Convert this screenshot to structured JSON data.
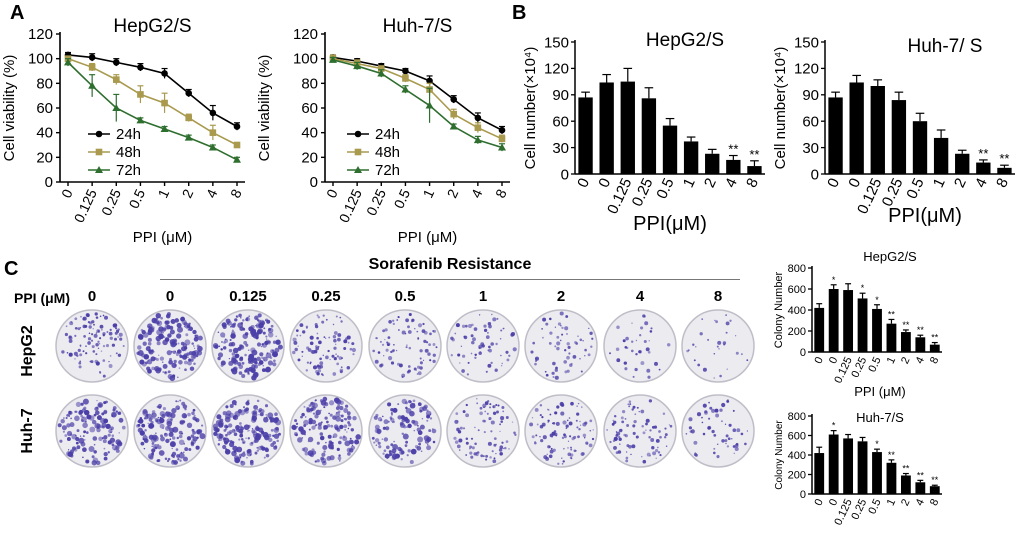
{
  "panels": {
    "a": "A",
    "b": "B",
    "c": "C"
  },
  "chart_data": [
    {
      "type": "line",
      "title": "HepG2/S",
      "ylabel": "Cell viability (%)",
      "xlabel": "PPI (μM)",
      "categories": [
        "0",
        "0.125",
        "0.25",
        "0.5",
        "1",
        "2",
        "4",
        "8"
      ],
      "ylim": [
        0,
        120
      ],
      "yticks": [
        0,
        20,
        40,
        60,
        80,
        100,
        120
      ],
      "legend_position": "left",
      "series": [
        {
          "name": "24h",
          "color": "#000000",
          "marker": "circle",
          "values": [
            103,
            101,
            97,
            93,
            88,
            72,
            56,
            45
          ],
          "errors": [
            2,
            3,
            3,
            3,
            4,
            3,
            6,
            3
          ]
        },
        {
          "name": "48h",
          "color": "#a99a4e",
          "marker": "square",
          "values": [
            100,
            93,
            83,
            71,
            64,
            52,
            40,
            30
          ],
          "errors": [
            2,
            3,
            4,
            7,
            8,
            3,
            6,
            2
          ]
        },
        {
          "name": "72h",
          "color": "#2e6e2e",
          "marker": "triangle",
          "values": [
            97,
            78,
            60,
            50,
            43,
            36,
            28,
            18
          ],
          "errors": [
            3,
            9,
            11,
            2,
            2,
            2,
            2,
            2
          ]
        }
      ]
    },
    {
      "type": "line",
      "title": "Huh-7/S",
      "ylabel": "Cell viability (%)",
      "xlabel": "PPI (μM)",
      "categories": [
        "0",
        "0.125",
        "0.25",
        "0.5",
        "1",
        "2",
        "4",
        "8"
      ],
      "ylim": [
        0,
        120
      ],
      "yticks": [
        0,
        20,
        40,
        60,
        80,
        100,
        120
      ],
      "legend_position": "left",
      "series": [
        {
          "name": "24h",
          "color": "#000000",
          "marker": "circle",
          "values": [
            101,
            98,
            94,
            90,
            82,
            67,
            52,
            42
          ],
          "errors": [
            2,
            2,
            2,
            2,
            4,
            3,
            4,
            3
          ]
        },
        {
          "name": "48h",
          "color": "#a99a4e",
          "marker": "square",
          "values": [
            100,
            96,
            92,
            84,
            75,
            55,
            44,
            35
          ],
          "errors": [
            3,
            3,
            2,
            3,
            5,
            4,
            4,
            3
          ]
        },
        {
          "name": "72h",
          "color": "#2e6e2e",
          "marker": "triangle",
          "values": [
            99,
            94,
            88,
            75,
            62,
            45,
            34,
            28
          ],
          "errors": [
            2,
            3,
            3,
            3,
            14,
            2,
            3,
            3
          ]
        }
      ]
    },
    {
      "type": "bar",
      "title": "HepG2/S",
      "ylabel": "Cell number(×10⁴)",
      "xlabel": "PPI(μM)",
      "categories": [
        "0",
        "0",
        "0.125",
        "0.25",
        "0.5",
        "1",
        "2",
        "4",
        "8"
      ],
      "values": [
        87,
        104,
        105,
        86,
        55,
        37,
        23,
        16,
        9
      ],
      "errors": [
        6,
        9,
        15,
        12,
        8,
        5,
        5,
        5,
        6
      ],
      "significance": [
        "",
        "",
        "",
        "",
        "",
        "",
        "",
        "**",
        "**"
      ],
      "ylim": [
        0,
        150
      ],
      "yticks": [
        0,
        30,
        60,
        90,
        120,
        150
      ]
    },
    {
      "type": "bar",
      "title": "Huh-7/ S",
      "ylabel": "Cell number(×10⁴)",
      "xlabel": "PPI(μM)",
      "categories": [
        "0",
        "0",
        "0.125",
        "0.25",
        "0.5",
        "1",
        "2",
        "4",
        "8"
      ],
      "values": [
        87,
        104,
        100,
        84,
        60,
        41,
        23,
        13,
        7
      ],
      "errors": [
        6,
        8,
        7,
        9,
        9,
        9,
        4,
        3,
        3
      ],
      "significance": [
        "",
        "",
        "",
        "",
        "",
        "",
        "",
        "**",
        "**"
      ],
      "ylim": [
        0,
        150
      ],
      "yticks": [
        0,
        30,
        60,
        90,
        120,
        150
      ]
    },
    {
      "type": "bar",
      "title": "HepG2/S",
      "ylabel": "Colony Number",
      "xlabel": "PPI (μM)",
      "categories": [
        "0",
        "0",
        "0.125",
        "0.25",
        "0.5",
        "1",
        "2",
        "4",
        "8"
      ],
      "values": [
        420,
        600,
        590,
        510,
        410,
        270,
        190,
        140,
        70
      ],
      "errors": [
        40,
        40,
        60,
        50,
        40,
        40,
        20,
        20,
        20
      ],
      "significance": [
        "",
        "*",
        "",
        "*",
        "*",
        "**",
        "**",
        "**",
        "**"
      ],
      "ylim": [
        0,
        800
      ],
      "yticks": [
        0,
        200,
        400,
        600,
        800
      ]
    },
    {
      "type": "bar",
      "title": "Huh-7/S",
      "ylabel": "Colony Number",
      "xlabel": "",
      "categories": [
        "0",
        "0",
        "0.125",
        "0.25",
        "0.5",
        "1",
        "2",
        "4",
        "8"
      ],
      "values": [
        420,
        610,
        570,
        540,
        430,
        320,
        190,
        120,
        80
      ],
      "errors": [
        60,
        40,
        40,
        40,
        30,
        30,
        20,
        20,
        10
      ],
      "significance": [
        "",
        "*",
        "",
        "",
        "*",
        "**",
        "**",
        "**",
        "**"
      ],
      "ylim": [
        0,
        800
      ],
      "yticks": [
        0,
        200,
        400,
        600,
        800
      ]
    }
  ],
  "colony": {
    "header": "Sorafenib Resistance",
    "ppi_label": "PPI (μM)",
    "doses": [
      "0",
      "0",
      "0.125",
      "0.25",
      "0.5",
      "1",
      "2",
      "4",
      "8"
    ],
    "rows": [
      "HepG2",
      "Huh-7"
    ],
    "density_hepg2": [
      0.55,
      0.9,
      1.0,
      0.45,
      0.4,
      0.3,
      0.28,
      0.14,
      0.1
    ],
    "density_huh7": [
      0.7,
      0.85,
      1.0,
      0.8,
      0.65,
      0.45,
      0.5,
      0.4,
      0.25
    ],
    "stain_color": "#4b3fa8"
  }
}
